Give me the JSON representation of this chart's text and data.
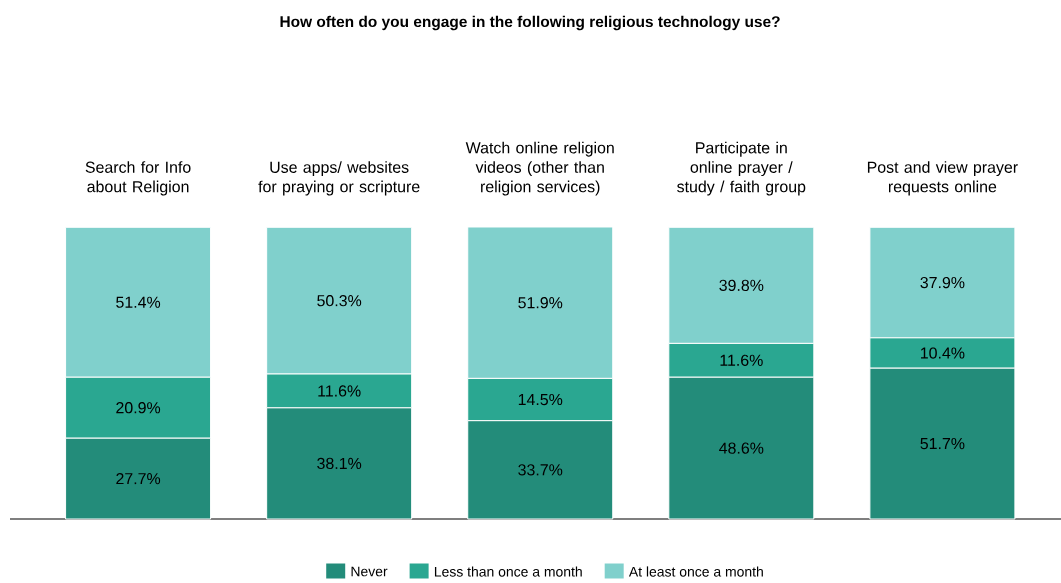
{
  "chart_data": {
    "type": "bar",
    "stacked": true,
    "title": "How often do you engage in the following religious technology use?",
    "categories": [
      "Search for Info about Religion",
      "Use apps/ websites for praying or scripture",
      "Watch online religion videos (other than religion services)",
      "Participate in online prayer / study / faith group",
      "Post and view prayer requests online"
    ],
    "series": [
      {
        "name": "Never",
        "color": "#238c7a",
        "values": [
          27.7,
          38.1,
          33.7,
          48.6,
          51.7
        ],
        "value_labels": [
          "27.7%",
          "38.1%",
          "33.7%",
          "48.6%",
          "51.7%"
        ]
      },
      {
        "name": "Less than once a month",
        "color": "#2aa791",
        "values": [
          20.9,
          11.6,
          14.5,
          11.6,
          10.4
        ],
        "value_labels": [
          "20.9%",
          "11.6%",
          "14.5%",
          "11.6%",
          "10.4%"
        ]
      },
      {
        "name": "At least once a month",
        "color": "#80d0cc",
        "values": [
          51.4,
          50.3,
          51.9,
          39.8,
          37.9
        ],
        "value_labels": [
          "51.4%",
          "50.3%",
          "51.9%",
          "39.8%",
          "37.9%"
        ]
      }
    ],
    "legend": "bottom"
  }
}
